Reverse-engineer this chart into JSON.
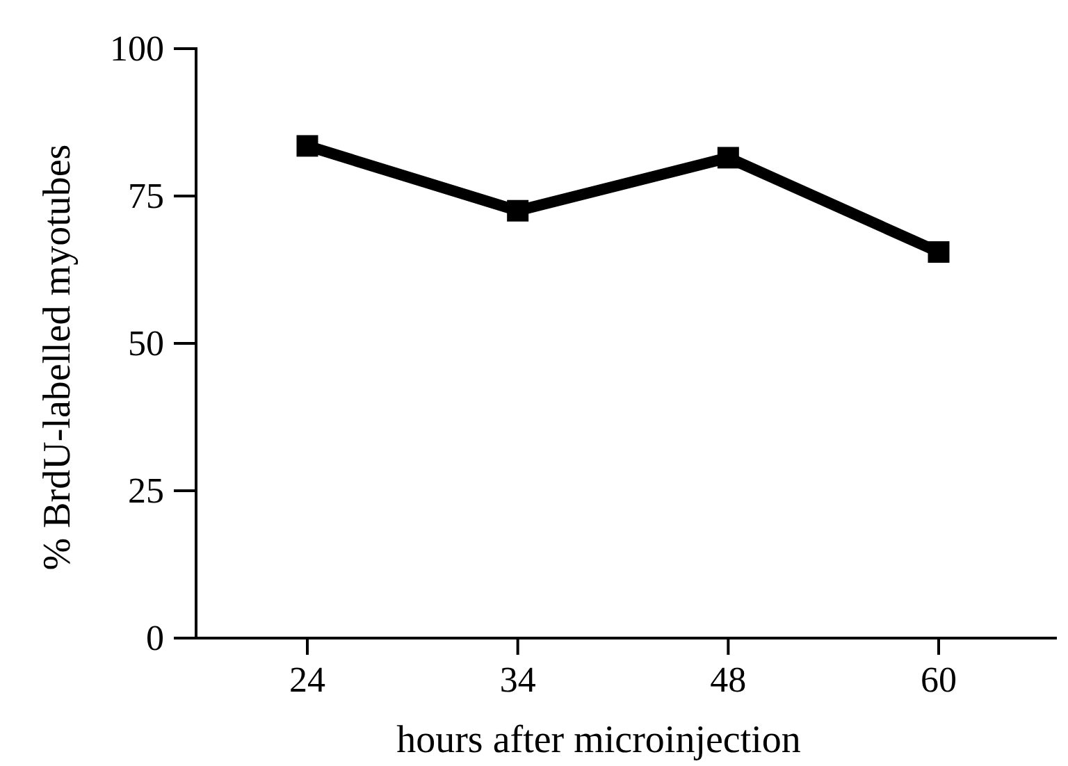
{
  "chart_data": {
    "type": "line",
    "xlabel": "hours after microinjection",
    "ylabel": "% BrdU-labelled myotubes",
    "categories": [
      "24",
      "34",
      "48",
      "60"
    ],
    "series": [
      {
        "color": "#000000",
        "values": [
          83.5,
          72.5,
          81.5,
          65.5
        ]
      }
    ],
    "ylim": [
      0,
      100
    ],
    "yticks": [
      0,
      25,
      50,
      75,
      100
    ],
    "grid": false,
    "marker": "square",
    "line_style": "solid"
  }
}
